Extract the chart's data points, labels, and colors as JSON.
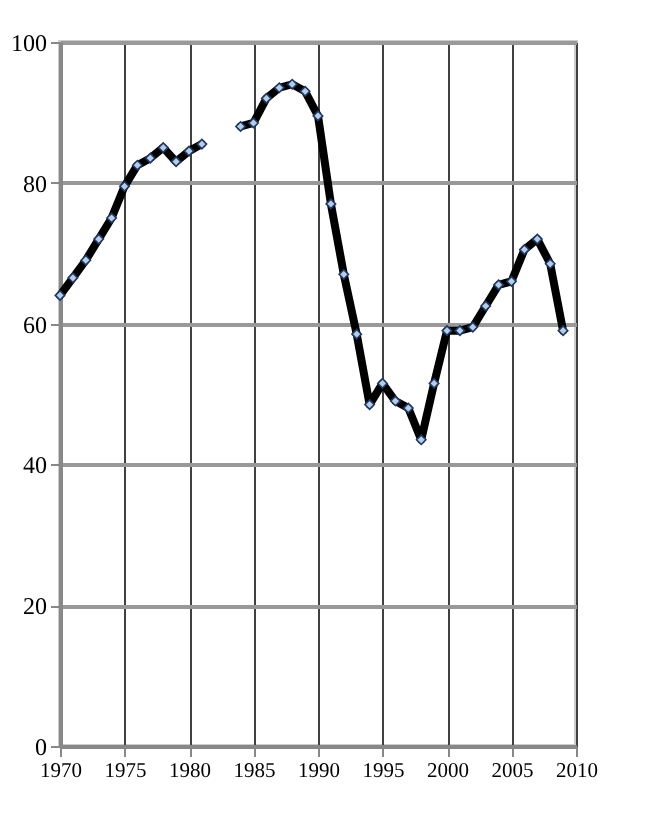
{
  "chart_data": {
    "type": "line",
    "x": [
      1970,
      1971,
      1972,
      1973,
      1974,
      1975,
      1976,
      1977,
      1978,
      1979,
      1980,
      1981,
      1982,
      1983,
      1984,
      1985,
      1986,
      1987,
      1988,
      1989,
      1990,
      1991,
      1992,
      1993,
      1994,
      1995,
      1996,
      1997,
      1998,
      1999,
      2000,
      2001,
      2002,
      2003,
      2004,
      2005,
      2006,
      2007,
      2008,
      2009
    ],
    "series": [
      {
        "color": "#000000",
        "values": [
          64,
          66.5,
          69,
          72,
          75,
          79.5,
          82.5,
          83.5,
          85,
          83,
          84.5,
          85.5,
          null,
          null,
          88,
          88.5,
          92,
          93.5,
          94,
          93,
          89.5,
          77,
          67,
          58.5,
          48.5,
          51.5,
          49,
          48,
          43.5,
          51.5,
          59,
          59,
          59.5,
          62.5,
          65.5,
          66,
          70.5,
          72,
          68.5,
          59
        ]
      }
    ],
    "xlim": [
      1970,
      2010
    ],
    "xticks": [
      1970,
      1975,
      1980,
      1985,
      1990,
      1995,
      2000,
      2005,
      2010
    ],
    "ylim": [
      0,
      100
    ],
    "yticks": [
      0,
      20,
      40,
      60,
      80,
      100
    ],
    "grid": true,
    "marker": "diamond",
    "line_style": "solid"
  }
}
